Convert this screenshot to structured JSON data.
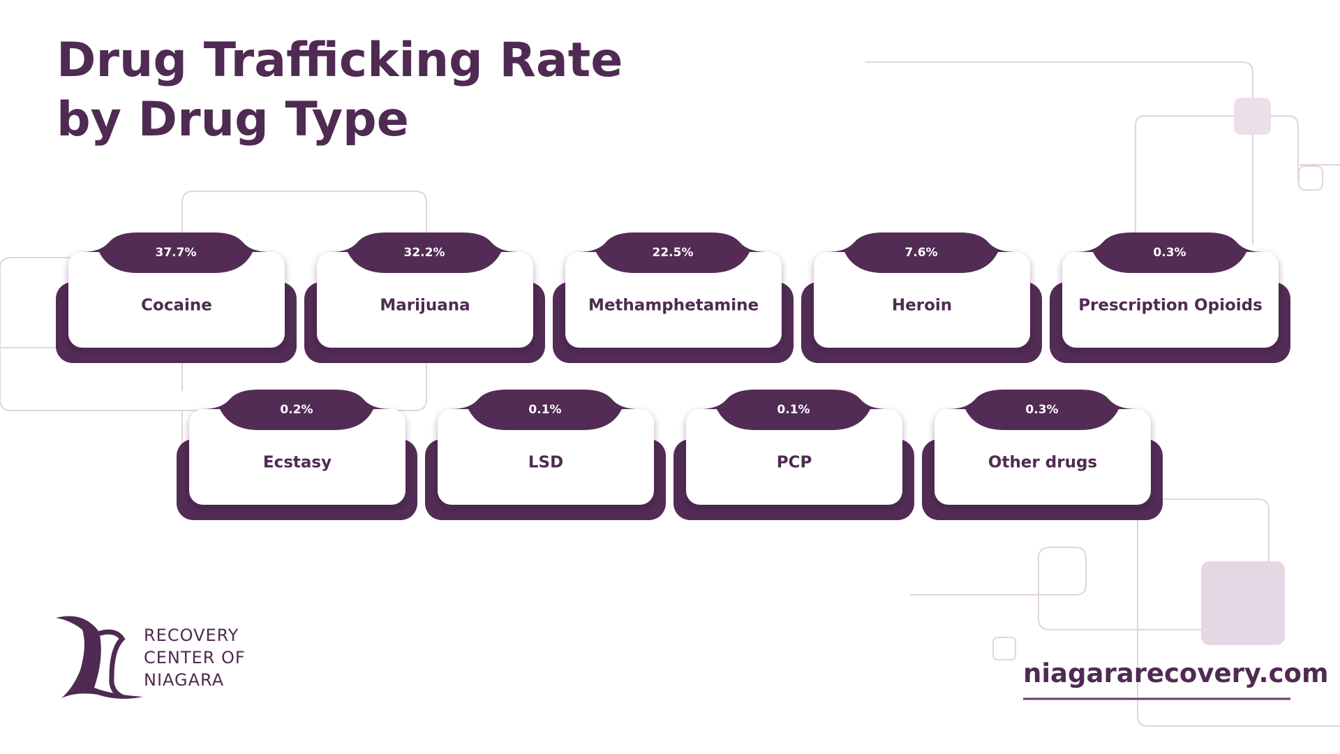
{
  "header": {
    "title_line1": "Drug Trafficking Rate",
    "title_line2": "by Drug Type"
  },
  "cards": [
    {
      "label": "Cocaine",
      "value": "37.7%"
    },
    {
      "label": "Marijuana",
      "value": "32.2%"
    },
    {
      "label": "Methamphetamine",
      "value": "22.5%"
    },
    {
      "label": "Heroin",
      "value": "7.6%"
    },
    {
      "label": "Prescription Opioids",
      "value": "0.3%"
    },
    {
      "label": "Ecstasy",
      "value": "0.2%"
    },
    {
      "label": "LSD",
      "value": "0.1%"
    },
    {
      "label": "PCP",
      "value": "0.1%"
    },
    {
      "label": "Other drugs",
      "value": "0.3%"
    }
  ],
  "logo": {
    "lines": [
      "RECOVERY",
      "CENTER OF",
      "NIAGARA"
    ]
  },
  "website": "niagararecovery.com"
}
